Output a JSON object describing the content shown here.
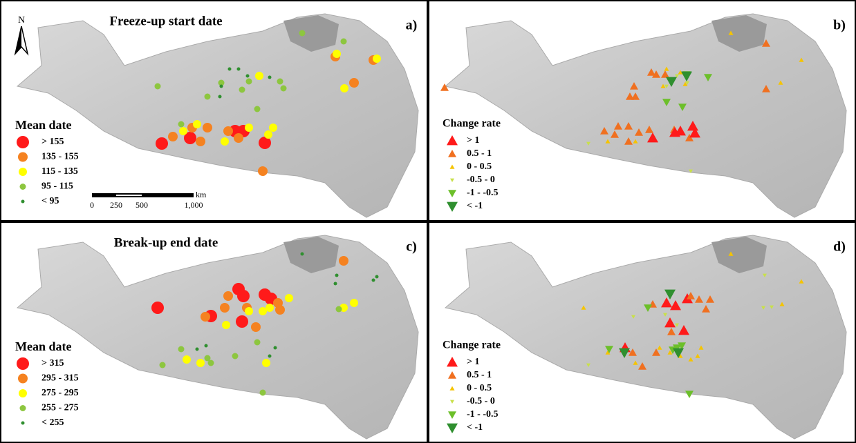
{
  "panels": [
    {
      "label": "a)",
      "title": "Freeze-up start date",
      "north": "N",
      "legend": {
        "title": "Mean date",
        "items": [
          "> 155",
          "135 - 155",
          "115 - 135",
          "95 - 115",
          "< 95"
        ]
      },
      "scale_bar": {
        "labels": [
          "0",
          "250",
          "500",
          "1,000"
        ],
        "unit": "km"
      }
    },
    {
      "label": "b)",
      "legend": {
        "title": "Change rate",
        "items": [
          "> 1",
          "0.5 - 1",
          "0 - 0.5",
          "-0.5 - 0",
          "-1 - -0.5",
          "< -1"
        ]
      }
    },
    {
      "label": "c)",
      "title": "Break-up end date",
      "legend": {
        "title": "Mean date",
        "items": [
          "> 315",
          "295 - 315",
          "275 - 295",
          "255 - 275",
          "< 255"
        ]
      }
    },
    {
      "label": "d)",
      "legend": {
        "title": "Change rate",
        "items": [
          "> 1",
          "0.5 - 1",
          "0 - 0.5",
          "-0.5 - 0",
          "-1 - -0.5",
          "< -1"
        ]
      }
    }
  ]
}
